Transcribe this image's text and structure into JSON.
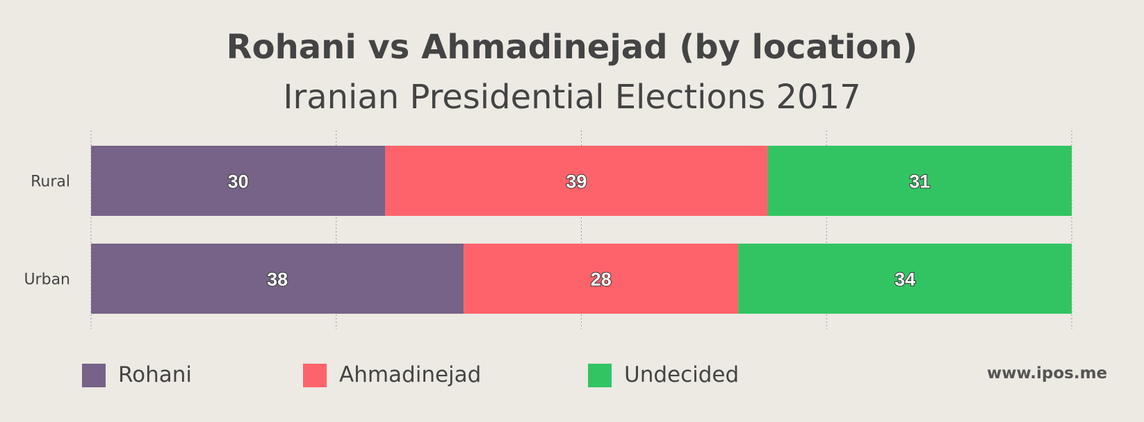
{
  "chart_data": {
    "type": "bar",
    "orientation": "horizontal",
    "stacked": true,
    "title": "Rohani vs Ahmadinejad (by location)",
    "subtitle": "Iranian Presidential Elections 2017",
    "categories": [
      "Rural",
      "Urban"
    ],
    "series": [
      {
        "name": "Rohani",
        "values": [
          30,
          38
        ],
        "color": "#766387"
      },
      {
        "name": "Ahmadinejad",
        "values": [
          39,
          28
        ],
        "color": "#fe636b"
      },
      {
        "name": "Undecided",
        "values": [
          31,
          34
        ],
        "color": "#32c463"
      }
    ],
    "xlim": [
      0,
      100
    ],
    "grid": true,
    "legend_position": "bottom-left",
    "data_labels": true
  },
  "watermark": "www.ipos.me",
  "colors": {
    "background": "#ede9e3",
    "text": "#444444",
    "grid": "#999999"
  }
}
